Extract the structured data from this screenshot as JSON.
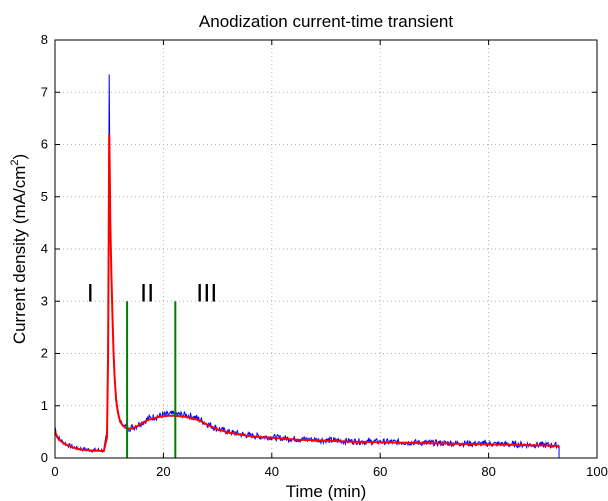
{
  "chart_data": {
    "type": "line",
    "title": "Anodization current-time transient",
    "xlabel": "Time  (min)",
    "ylabel_main": "Current density (mA/cm",
    "ylabel_sup": "2",
    "ylabel_end": ")",
    "xlim": [
      0,
      100
    ],
    "ylim": [
      0,
      8
    ],
    "xticks": [
      "0",
      "20",
      "40",
      "60",
      "80",
      "100"
    ],
    "yticks": [
      "0",
      "1",
      "2",
      "3",
      "4",
      "5",
      "6",
      "7",
      "8"
    ],
    "grid": true,
    "grid_style": "dotted",
    "colors": {
      "raw": "#0000ff",
      "smoothed": "#ff0000",
      "markers": "#008000",
      "grid": "#b0b0b0",
      "axes": "#000000"
    },
    "series": [
      {
        "style": "raw",
        "x": [
          0,
          0.2,
          0.5,
          1,
          1.5,
          2,
          3,
          4,
          5,
          6,
          7,
          8,
          9,
          9.6,
          9.8,
          9.9,
          10.0,
          10.1,
          10.2,
          10.4,
          10.6,
          10.8,
          11.0,
          11.3,
          11.6,
          12.0,
          12.5,
          13.0,
          13.5,
          14,
          15,
          16,
          17,
          18,
          19,
          20,
          21,
          22,
          23,
          24,
          25,
          26,
          27,
          28,
          30,
          32,
          34,
          36,
          38,
          40,
          42,
          45,
          48,
          50,
          55,
          60,
          65,
          70,
          75,
          80,
          85,
          90,
          93
        ],
        "y": [
          0.6,
          0.5,
          0.4,
          0.35,
          0.3,
          0.27,
          0.22,
          0.19,
          0.17,
          0.16,
          0.15,
          0.15,
          0.14,
          0.5,
          2.5,
          5.0,
          7.35,
          6.0,
          4.7,
          3.6,
          2.8,
          2.1,
          1.6,
          1.15,
          0.9,
          0.72,
          0.64,
          0.6,
          0.58,
          0.58,
          0.62,
          0.68,
          0.74,
          0.78,
          0.8,
          0.82,
          0.83,
          0.84,
          0.83,
          0.82,
          0.8,
          0.77,
          0.72,
          0.66,
          0.56,
          0.5,
          0.46,
          0.43,
          0.41,
          0.4,
          0.38,
          0.36,
          0.35,
          0.34,
          0.32,
          0.31,
          0.3,
          0.29,
          0.28,
          0.27,
          0.26,
          0.25,
          0.24
        ]
      },
      {
        "style": "smoothed",
        "x": [
          0,
          0.2,
          0.5,
          1,
          1.5,
          2,
          3,
          4,
          5,
          6,
          7,
          8,
          9,
          9.6,
          9.8,
          9.9,
          10.0,
          10.1,
          10.2,
          10.4,
          10.6,
          10.8,
          11.0,
          11.3,
          11.6,
          12.0,
          12.5,
          13.0,
          13.5,
          14,
          15,
          16,
          17,
          18,
          19,
          20,
          21,
          22,
          23,
          24,
          25,
          26,
          27,
          28,
          30,
          32,
          34,
          36,
          38,
          40,
          42,
          45,
          48,
          50,
          55,
          60,
          65,
          70,
          75,
          80,
          85,
          90,
          93
        ],
        "y": [
          0.5,
          0.45,
          0.38,
          0.33,
          0.29,
          0.26,
          0.21,
          0.18,
          0.16,
          0.15,
          0.14,
          0.14,
          0.13,
          0.4,
          2.0,
          4.2,
          6.2,
          5.6,
          4.5,
          3.5,
          2.7,
          2.05,
          1.55,
          1.1,
          0.87,
          0.7,
          0.62,
          0.58,
          0.56,
          0.56,
          0.6,
          0.66,
          0.72,
          0.76,
          0.78,
          0.8,
          0.81,
          0.81,
          0.8,
          0.79,
          0.77,
          0.74,
          0.7,
          0.64,
          0.55,
          0.49,
          0.45,
          0.42,
          0.4,
          0.39,
          0.37,
          0.35,
          0.34,
          0.33,
          0.31,
          0.3,
          0.29,
          0.28,
          0.27,
          0.26,
          0.25,
          0.24,
          0.23
        ]
      }
    ],
    "vertical_markers": [
      {
        "x": 13.3,
        "y_top": 3.0
      },
      {
        "x": 22.2,
        "y_top": 3.0
      }
    ],
    "annotations": [
      {
        "text": "I",
        "x": 6.5,
        "y": 3.0
      },
      {
        "text": "II",
        "x": 17.0,
        "y": 3.0
      },
      {
        "text": "III",
        "x": 28.0,
        "y": 3.0
      }
    ]
  }
}
